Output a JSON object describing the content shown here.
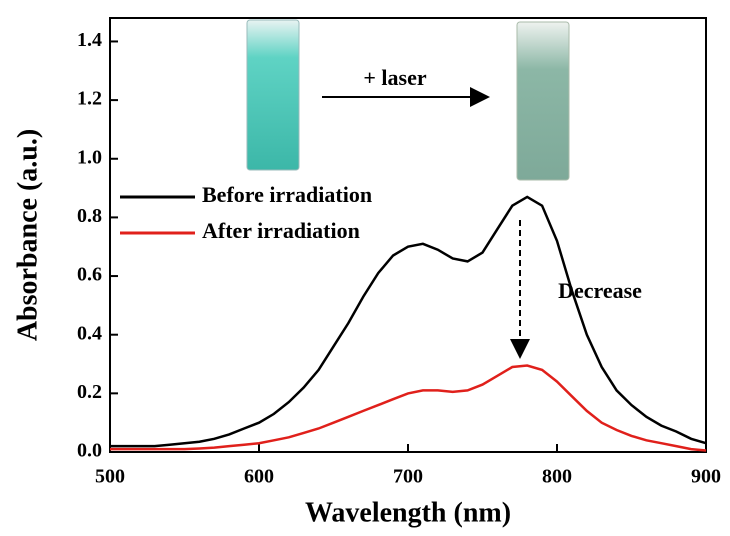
{
  "chart_data": {
    "type": "line",
    "x_label": "Wavelength (nm)",
    "y_label": "Absorbance (a.u.)",
    "annotations": [
      "+ laser",
      "Decrease"
    ],
    "x": [
      500,
      510,
      520,
      530,
      540,
      550,
      560,
      570,
      580,
      590,
      600,
      610,
      620,
      630,
      640,
      650,
      660,
      670,
      680,
      690,
      700,
      710,
      720,
      730,
      740,
      750,
      760,
      770,
      780,
      790,
      800,
      810,
      820,
      830,
      840,
      850,
      860,
      870,
      880,
      890,
      900
    ],
    "series": [
      {
        "name": "Before irradiation",
        "color": "#000000",
        "values": [
          0.02,
          0.02,
          0.02,
          0.02,
          0.025,
          0.03,
          0.035,
          0.045,
          0.06,
          0.08,
          0.1,
          0.13,
          0.17,
          0.22,
          0.28,
          0.36,
          0.44,
          0.53,
          0.61,
          0.67,
          0.7,
          0.71,
          0.69,
          0.66,
          0.65,
          0.68,
          0.76,
          0.84,
          0.87,
          0.84,
          0.72,
          0.55,
          0.4,
          0.29,
          0.21,
          0.16,
          0.12,
          0.09,
          0.07,
          0.045,
          0.03
        ]
      },
      {
        "name": "After irradiation",
        "color": "#e0201b",
        "values": [
          0.01,
          0.01,
          0.01,
          0.01,
          0.01,
          0.01,
          0.012,
          0.015,
          0.02,
          0.025,
          0.03,
          0.04,
          0.05,
          0.065,
          0.08,
          0.1,
          0.12,
          0.14,
          0.16,
          0.18,
          0.2,
          0.21,
          0.21,
          0.205,
          0.21,
          0.23,
          0.26,
          0.29,
          0.295,
          0.28,
          0.24,
          0.19,
          0.14,
          0.1,
          0.075,
          0.055,
          0.04,
          0.03,
          0.02,
          0.01,
          0.005
        ]
      }
    ],
    "xlim": [
      500,
      900
    ],
    "xticks": [
      500,
      600,
      700,
      800,
      900
    ],
    "ylim": [
      0,
      1.48
    ],
    "yticks": [
      {
        "value": 0,
        "label": "0.0"
      },
      0.2,
      0.4,
      0.6,
      0.8,
      {
        "value": 1,
        "label": "1.0"
      },
      1.2,
      1.4
    ],
    "legend": "upper left"
  }
}
